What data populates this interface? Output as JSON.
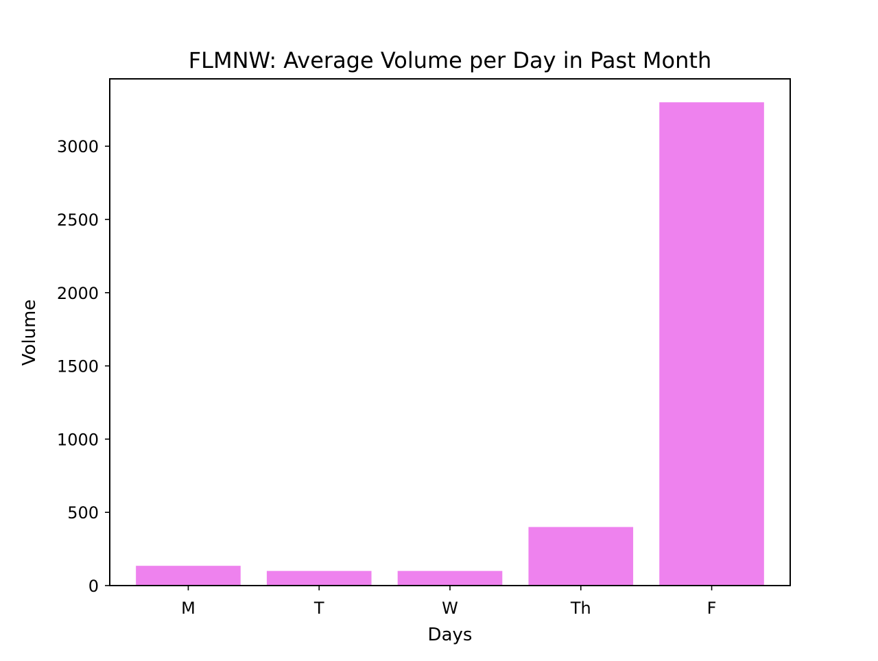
{
  "chart_data": {
    "type": "bar",
    "title": "FLMNW: Average Volume per Day in Past Month",
    "xlabel": "Days",
    "ylabel": "Volume",
    "categories": [
      "M",
      "T",
      "W",
      "Th",
      "F"
    ],
    "values": [
      135,
      100,
      100,
      400,
      3300
    ],
    "ylim": [
      0,
      3460
    ],
    "yticks": [
      0,
      500,
      1000,
      1500,
      2000,
      2500,
      3000
    ],
    "bar_color": "#ee82ee",
    "grid": false,
    "legend": "none"
  }
}
